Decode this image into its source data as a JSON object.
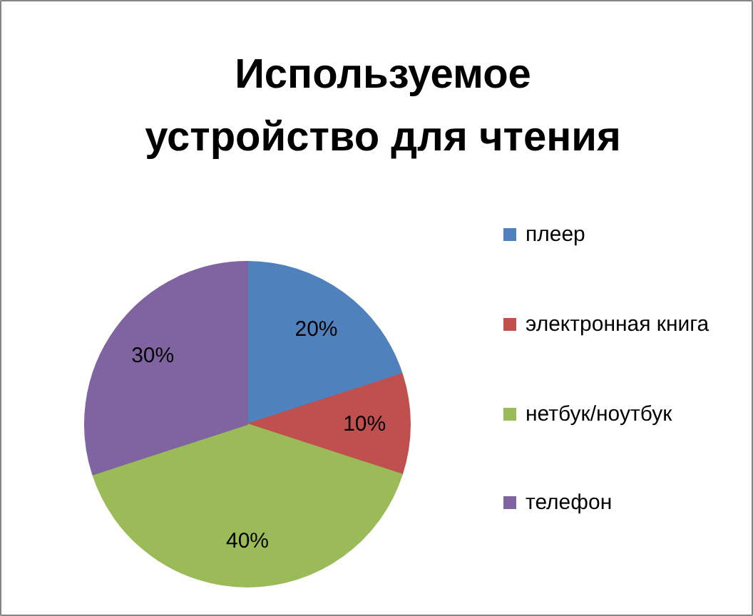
{
  "chart_data": {
    "type": "pie",
    "title": "Используемое устройство для чтения",
    "categories": [
      "плеер",
      "электронная книга",
      "нетбук/ноутбук",
      "телефон"
    ],
    "values": [
      20,
      10,
      40,
      30
    ],
    "colors": [
      "#4f81bd",
      "#c0504d",
      "#9bbb59",
      "#8064a2"
    ],
    "value_labels": [
      "20%",
      "10%",
      "40%",
      "30%"
    ],
    "legend": "right"
  }
}
